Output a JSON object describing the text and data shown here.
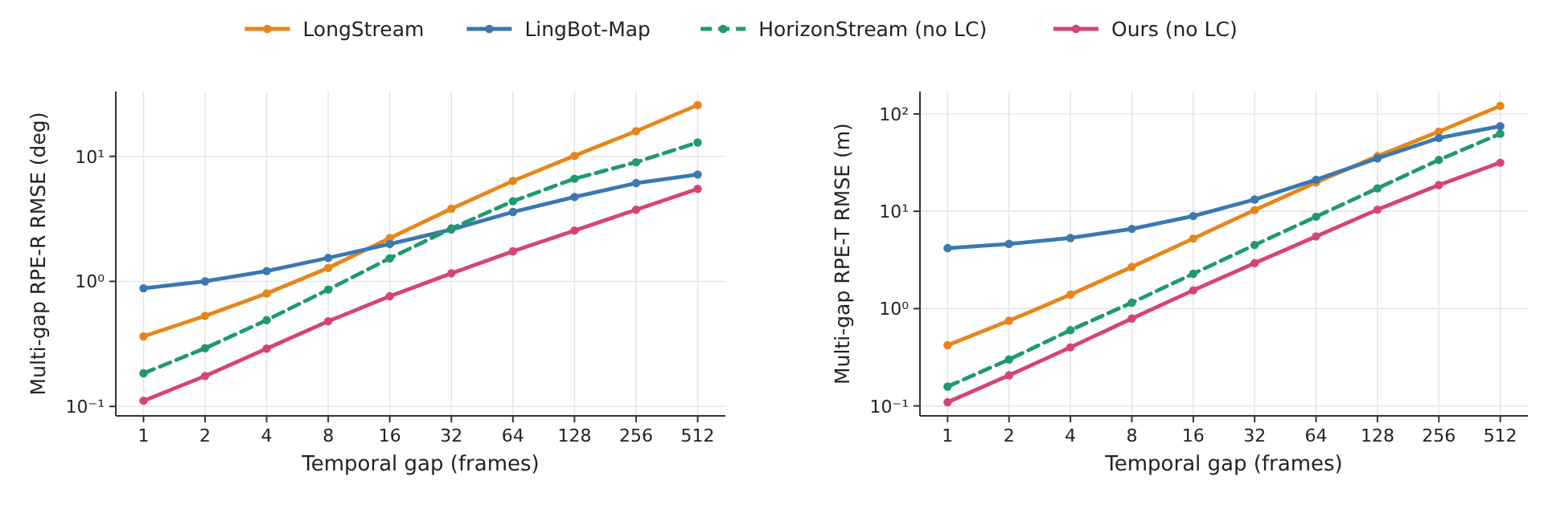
{
  "chart_data": [
    {
      "type": "line",
      "xlabel": "Temporal gap (frames)",
      "ylabel": "Multi-gap RPE-R RMSE (deg)",
      "categories": [
        "1",
        "2",
        "4",
        "8",
        "16",
        "32",
        "64",
        "128",
        "256",
        "512"
      ],
      "log": "y",
      "ylim": [
        0.084,
        33
      ],
      "yticks": [
        {
          "value": 0.1,
          "label": "10⁻¹"
        },
        {
          "value": 1,
          "label": "10⁰"
        },
        {
          "value": 10,
          "label": "10¹"
        }
      ],
      "grid": true,
      "legend": "top",
      "marker": "circle",
      "series": [
        {
          "name": "LongStream",
          "color": "#e6861a",
          "line_style": "solid",
          "values": [
            0.363,
            0.53,
            0.8,
            1.28,
            2.22,
            3.81,
            6.36,
            10.1,
            15.9,
            25.7
          ]
        },
        {
          "name": "LingBot-Map",
          "color": "#3a78b0",
          "line_style": "solid",
          "values": [
            0.88,
            1.0,
            1.21,
            1.54,
            1.99,
            2.6,
            3.59,
            4.73,
            6.11,
            7.16
          ]
        },
        {
          "name": "HorizonStream (no LC)",
          "color": "#1f9a6e",
          "line_style": "dashed",
          "values": [
            0.184,
            0.292,
            0.49,
            0.86,
            1.53,
            2.65,
            4.38,
            6.62,
            8.97,
            12.9
          ]
        },
        {
          "name": "Ours (no LC)",
          "color": "#d64570",
          "line_style": "solid",
          "values": [
            0.111,
            0.175,
            0.29,
            0.48,
            0.76,
            1.16,
            1.74,
            2.55,
            3.74,
            5.49
          ]
        }
      ]
    },
    {
      "type": "line",
      "xlabel": "Temporal gap (frames)",
      "ylabel": "Multi-gap RPE-T RMSE (m)",
      "categories": [
        "1",
        "2",
        "4",
        "8",
        "16",
        "32",
        "64",
        "128",
        "256",
        "512"
      ],
      "log": "y",
      "ylim": [
        0.079,
        170
      ],
      "yticks": [
        {
          "value": 0.1,
          "label": "10⁻¹"
        },
        {
          "value": 1,
          "label": "10⁰"
        },
        {
          "value": 10,
          "label": "10¹"
        },
        {
          "value": 100,
          "label": "10²"
        }
      ],
      "grid": true,
      "marker": "circle",
      "series": [
        {
          "color": "#e6861a",
          "line_style": "solid",
          "values": [
            0.42,
            0.75,
            1.39,
            2.68,
            5.25,
            10.3,
            19.8,
            36.8,
            65.9,
            121
          ]
        },
        {
          "color": "#3a78b0",
          "line_style": "solid",
          "values": [
            4.18,
            4.62,
            5.31,
            6.59,
            8.93,
            13.2,
            21.1,
            35,
            56.6,
            74.8
          ]
        },
        {
          "color": "#1f9a6e",
          "line_style": "dashed",
          "values": [
            0.158,
            0.3,
            0.6,
            1.15,
            2.28,
            4.5,
            8.8,
            17.2,
            33.7,
            62.6
          ]
        },
        {
          "color": "#d64570",
          "line_style": "solid",
          "values": [
            0.109,
            0.206,
            0.4,
            0.79,
            1.54,
            2.93,
            5.52,
            10.4,
            18.6,
            31.6
          ]
        }
      ]
    }
  ]
}
